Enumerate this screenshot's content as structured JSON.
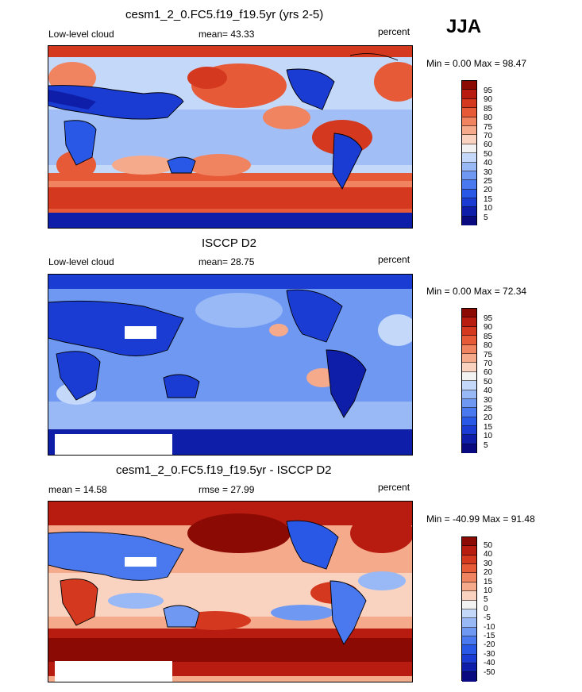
{
  "season": "JJA",
  "panels": [
    {
      "id": "model",
      "title": "cesm1_2_0.FC5.f19_f19.5yr (yrs 2-5)",
      "left_label": "Low-level cloud",
      "center_label": "mean=  43.33",
      "units": "percent",
      "minmax": "Min =   0.00 Max =  98.47",
      "mean_value": 43.33,
      "min_value": 0.0,
      "max_value": 98.47,
      "colorbar_ticks": [
        "95",
        "90",
        "85",
        "80",
        "75",
        "70",
        "60",
        "50",
        "40",
        "30",
        "25",
        "20",
        "15",
        "10",
        "5"
      ]
    },
    {
      "id": "obs",
      "title": "ISCCP D2",
      "left_label": "Low-level cloud",
      "center_label": "mean=  28.75",
      "units": "percent",
      "minmax": "Min =   0.00 Max =  72.34",
      "mean_value": 28.75,
      "min_value": 0.0,
      "max_value": 72.34,
      "colorbar_ticks": [
        "95",
        "90",
        "85",
        "80",
        "75",
        "70",
        "60",
        "50",
        "40",
        "30",
        "25",
        "20",
        "15",
        "10",
        "5"
      ]
    },
    {
      "id": "diff",
      "title": "cesm1_2_0.FC5.f19_f19.5yr - ISCCP D2",
      "left_label": "mean =  14.58",
      "center_label": "rmse =  27.99",
      "units": "percent",
      "minmax": "Min = -40.99 Max =  91.48",
      "mean_value": 14.58,
      "rmse_value": 27.99,
      "min_value": -40.99,
      "max_value": 91.48,
      "colorbar_ticks": [
        "50",
        "40",
        "30",
        "20",
        "15",
        "10",
        "5",
        "0",
        "-5",
        "-10",
        "-15",
        "-20",
        "-30",
        "-40",
        "-50"
      ]
    }
  ],
  "palette": [
    "#0a0a80",
    "#0f1ea8",
    "#1a3cd2",
    "#2a58e6",
    "#4a78ee",
    "#6e98f2",
    "#98b8f6",
    "#c4d8fa",
    "#f2f2f2",
    "#fad2c0",
    "#f6aa8c",
    "#f08460",
    "#e65a38",
    "#d4381e",
    "#b81c10",
    "#8c0a04"
  ]
}
